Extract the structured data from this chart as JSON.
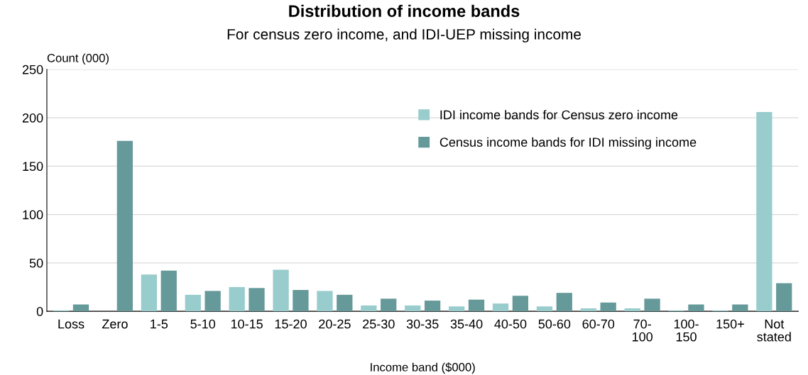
{
  "chart_data": {
    "type": "bar",
    "title": "Distribution of income bands",
    "subtitle": "For census zero income, and IDI-UEP missing income",
    "xlabel": "Income band ($000)",
    "ylabel": "Count (000)",
    "categories": [
      "Loss",
      "Zero",
      "1-5",
      "5-10",
      "10-15",
      "15-20",
      "20-25",
      "25-30",
      "30-35",
      "35-40",
      "40-50",
      "50-60",
      "60-70",
      "70-\n100",
      "100-\n150",
      "150+",
      "Not\nstated"
    ],
    "series": [
      {
        "name": "IDI income bands for Census zero income",
        "color": "#99cccc",
        "values": [
          1,
          0,
          38,
          17,
          25,
          43,
          21,
          6,
          6,
          5,
          8,
          5,
          3,
          3,
          1,
          1,
          206
        ]
      },
      {
        "name": "Census income bands for IDI missing income",
        "color": "#669999",
        "values": [
          7,
          176,
          42,
          21,
          24,
          22,
          17,
          13,
          11,
          12,
          16,
          19,
          9,
          13,
          7,
          7,
          29
        ]
      }
    ],
    "ylim": [
      0,
      250
    ],
    "yticks": [
      0,
      50,
      100,
      150,
      200,
      250
    ],
    "grid": "y",
    "legend": "top right"
  }
}
